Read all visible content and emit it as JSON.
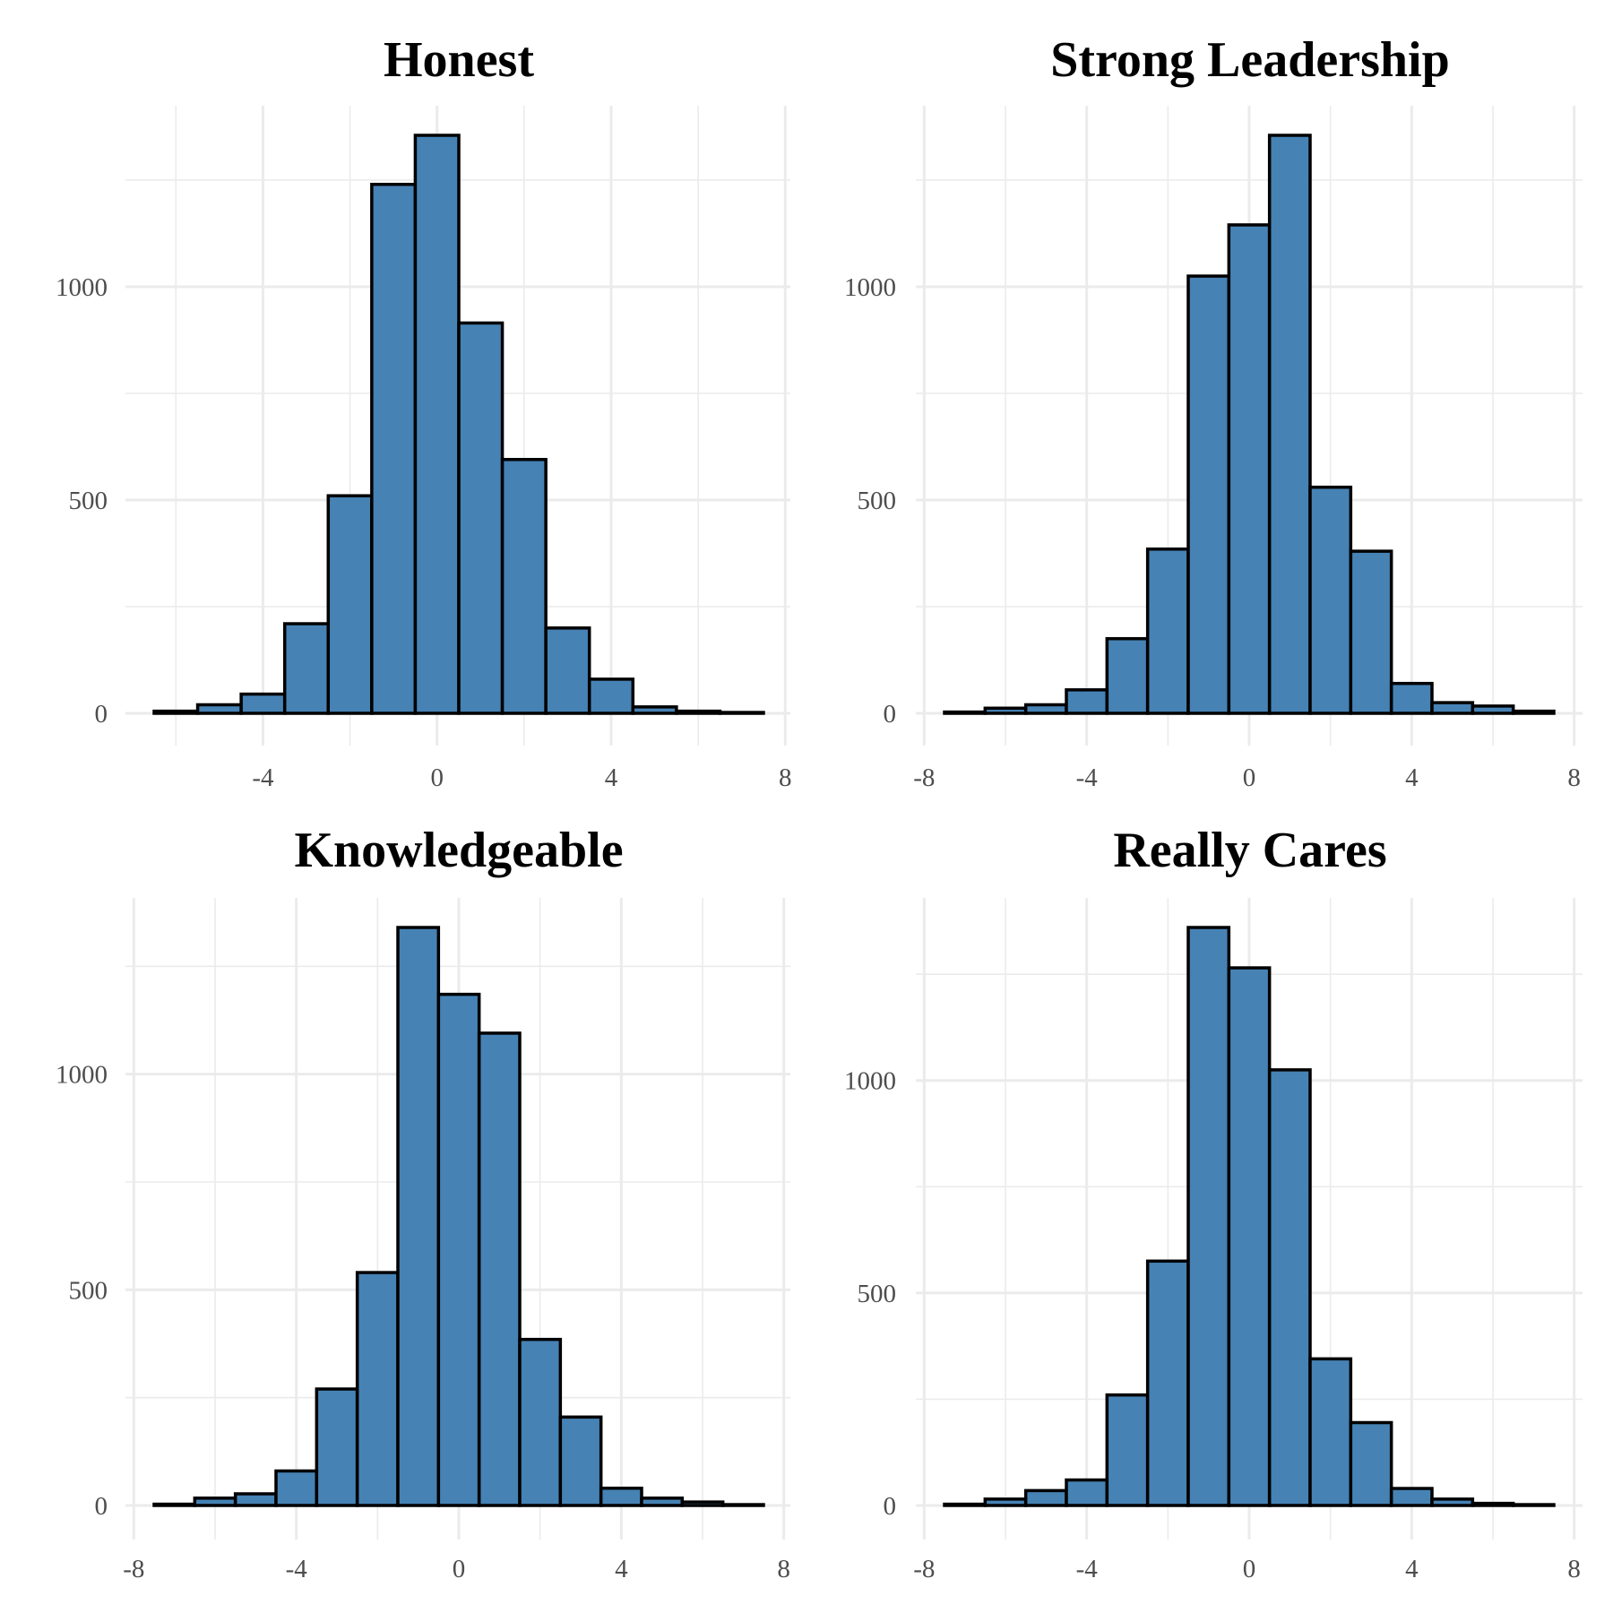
{
  "style": {
    "bar_fill": "#4682b4",
    "bar_stroke": "#000000",
    "grid_color": "#ebebeb",
    "background": "#ffffff"
  },
  "chart_data": [
    {
      "type": "bar",
      "title": "Honest",
      "binwidth": 1,
      "bins": [
        {
          "x": -6,
          "count": 5
        },
        {
          "x": -5,
          "count": 20
        },
        {
          "x": -4,
          "count": 45
        },
        {
          "x": -3,
          "count": 210
        },
        {
          "x": -2,
          "count": 510
        },
        {
          "x": -1,
          "count": 1240
        },
        {
          "x": 0,
          "count": 1355
        },
        {
          "x": 1,
          "count": 915
        },
        {
          "x": 2,
          "count": 595
        },
        {
          "x": 3,
          "count": 200
        },
        {
          "x": 4,
          "count": 80
        },
        {
          "x": 5,
          "count": 15
        },
        {
          "x": 6,
          "count": 5
        },
        {
          "x": 7,
          "count": 2
        }
      ],
      "xlim": [
        -6.5,
        7.5
      ],
      "ylim": [
        0,
        1355
      ],
      "xticks": [
        -4,
        0,
        4,
        8
      ],
      "yticks": [
        0,
        500,
        1000
      ],
      "xlabel": "",
      "ylabel": "",
      "grid": true
    },
    {
      "type": "bar",
      "title": "Strong Leadership",
      "binwidth": 1,
      "bins": [
        {
          "x": -7,
          "count": 3
        },
        {
          "x": -6,
          "count": 12
        },
        {
          "x": -5,
          "count": 20
        },
        {
          "x": -4,
          "count": 55
        },
        {
          "x": -3,
          "count": 175
        },
        {
          "x": -2,
          "count": 385
        },
        {
          "x": -1,
          "count": 1025
        },
        {
          "x": 0,
          "count": 1145
        },
        {
          "x": 1,
          "count": 1355
        },
        {
          "x": 2,
          "count": 530
        },
        {
          "x": 3,
          "count": 380
        },
        {
          "x": 4,
          "count": 70
        },
        {
          "x": 5,
          "count": 25
        },
        {
          "x": 6,
          "count": 17
        },
        {
          "x": 7,
          "count": 5
        }
      ],
      "xlim": [
        -7.5,
        7.5
      ],
      "ylim": [
        0,
        1355
      ],
      "xticks": [
        -8,
        -4,
        0,
        4,
        8
      ],
      "yticks": [
        0,
        500,
        1000
      ],
      "xlabel": "",
      "ylabel": "",
      "grid": true
    },
    {
      "type": "bar",
      "title": "Knowledgeable",
      "binwidth": 1,
      "bins": [
        {
          "x": -7,
          "count": 3
        },
        {
          "x": -6,
          "count": 17
        },
        {
          "x": -5,
          "count": 27
        },
        {
          "x": -4,
          "count": 80
        },
        {
          "x": -3,
          "count": 270
        },
        {
          "x": -2,
          "count": 540
        },
        {
          "x": -1,
          "count": 1340
        },
        {
          "x": 0,
          "count": 1185
        },
        {
          "x": 1,
          "count": 1095
        },
        {
          "x": 2,
          "count": 385
        },
        {
          "x": 3,
          "count": 205
        },
        {
          "x": 4,
          "count": 40
        },
        {
          "x": 5,
          "count": 17
        },
        {
          "x": 6,
          "count": 8
        },
        {
          "x": 7,
          "count": 2
        }
      ],
      "xlim": [
        -7.5,
        7.5
      ],
      "ylim": [
        0,
        1340
      ],
      "xticks": [
        -8,
        -4,
        0,
        4,
        8
      ],
      "yticks": [
        0,
        500,
        1000
      ],
      "xlabel": "",
      "ylabel": "",
      "grid": true
    },
    {
      "type": "bar",
      "title": "Really Cares",
      "binwidth": 1,
      "bins": [
        {
          "x": -7,
          "count": 3
        },
        {
          "x": -6,
          "count": 15
        },
        {
          "x": -5,
          "count": 35
        },
        {
          "x": -4,
          "count": 60
        },
        {
          "x": -3,
          "count": 260
        },
        {
          "x": -2,
          "count": 575
        },
        {
          "x": -1,
          "count": 1360
        },
        {
          "x": 0,
          "count": 1265
        },
        {
          "x": 1,
          "count": 1025
        },
        {
          "x": 2,
          "count": 345
        },
        {
          "x": 3,
          "count": 195
        },
        {
          "x": 4,
          "count": 40
        },
        {
          "x": 5,
          "count": 15
        },
        {
          "x": 6,
          "count": 5
        },
        {
          "x": 7,
          "count": 2
        }
      ],
      "xlim": [
        -7.5,
        7.5
      ],
      "ylim": [
        0,
        1360
      ],
      "xticks": [
        -8,
        -4,
        0,
        4,
        8
      ],
      "yticks": [
        0,
        500,
        1000
      ],
      "xlabel": "",
      "ylabel": "",
      "grid": true
    }
  ]
}
